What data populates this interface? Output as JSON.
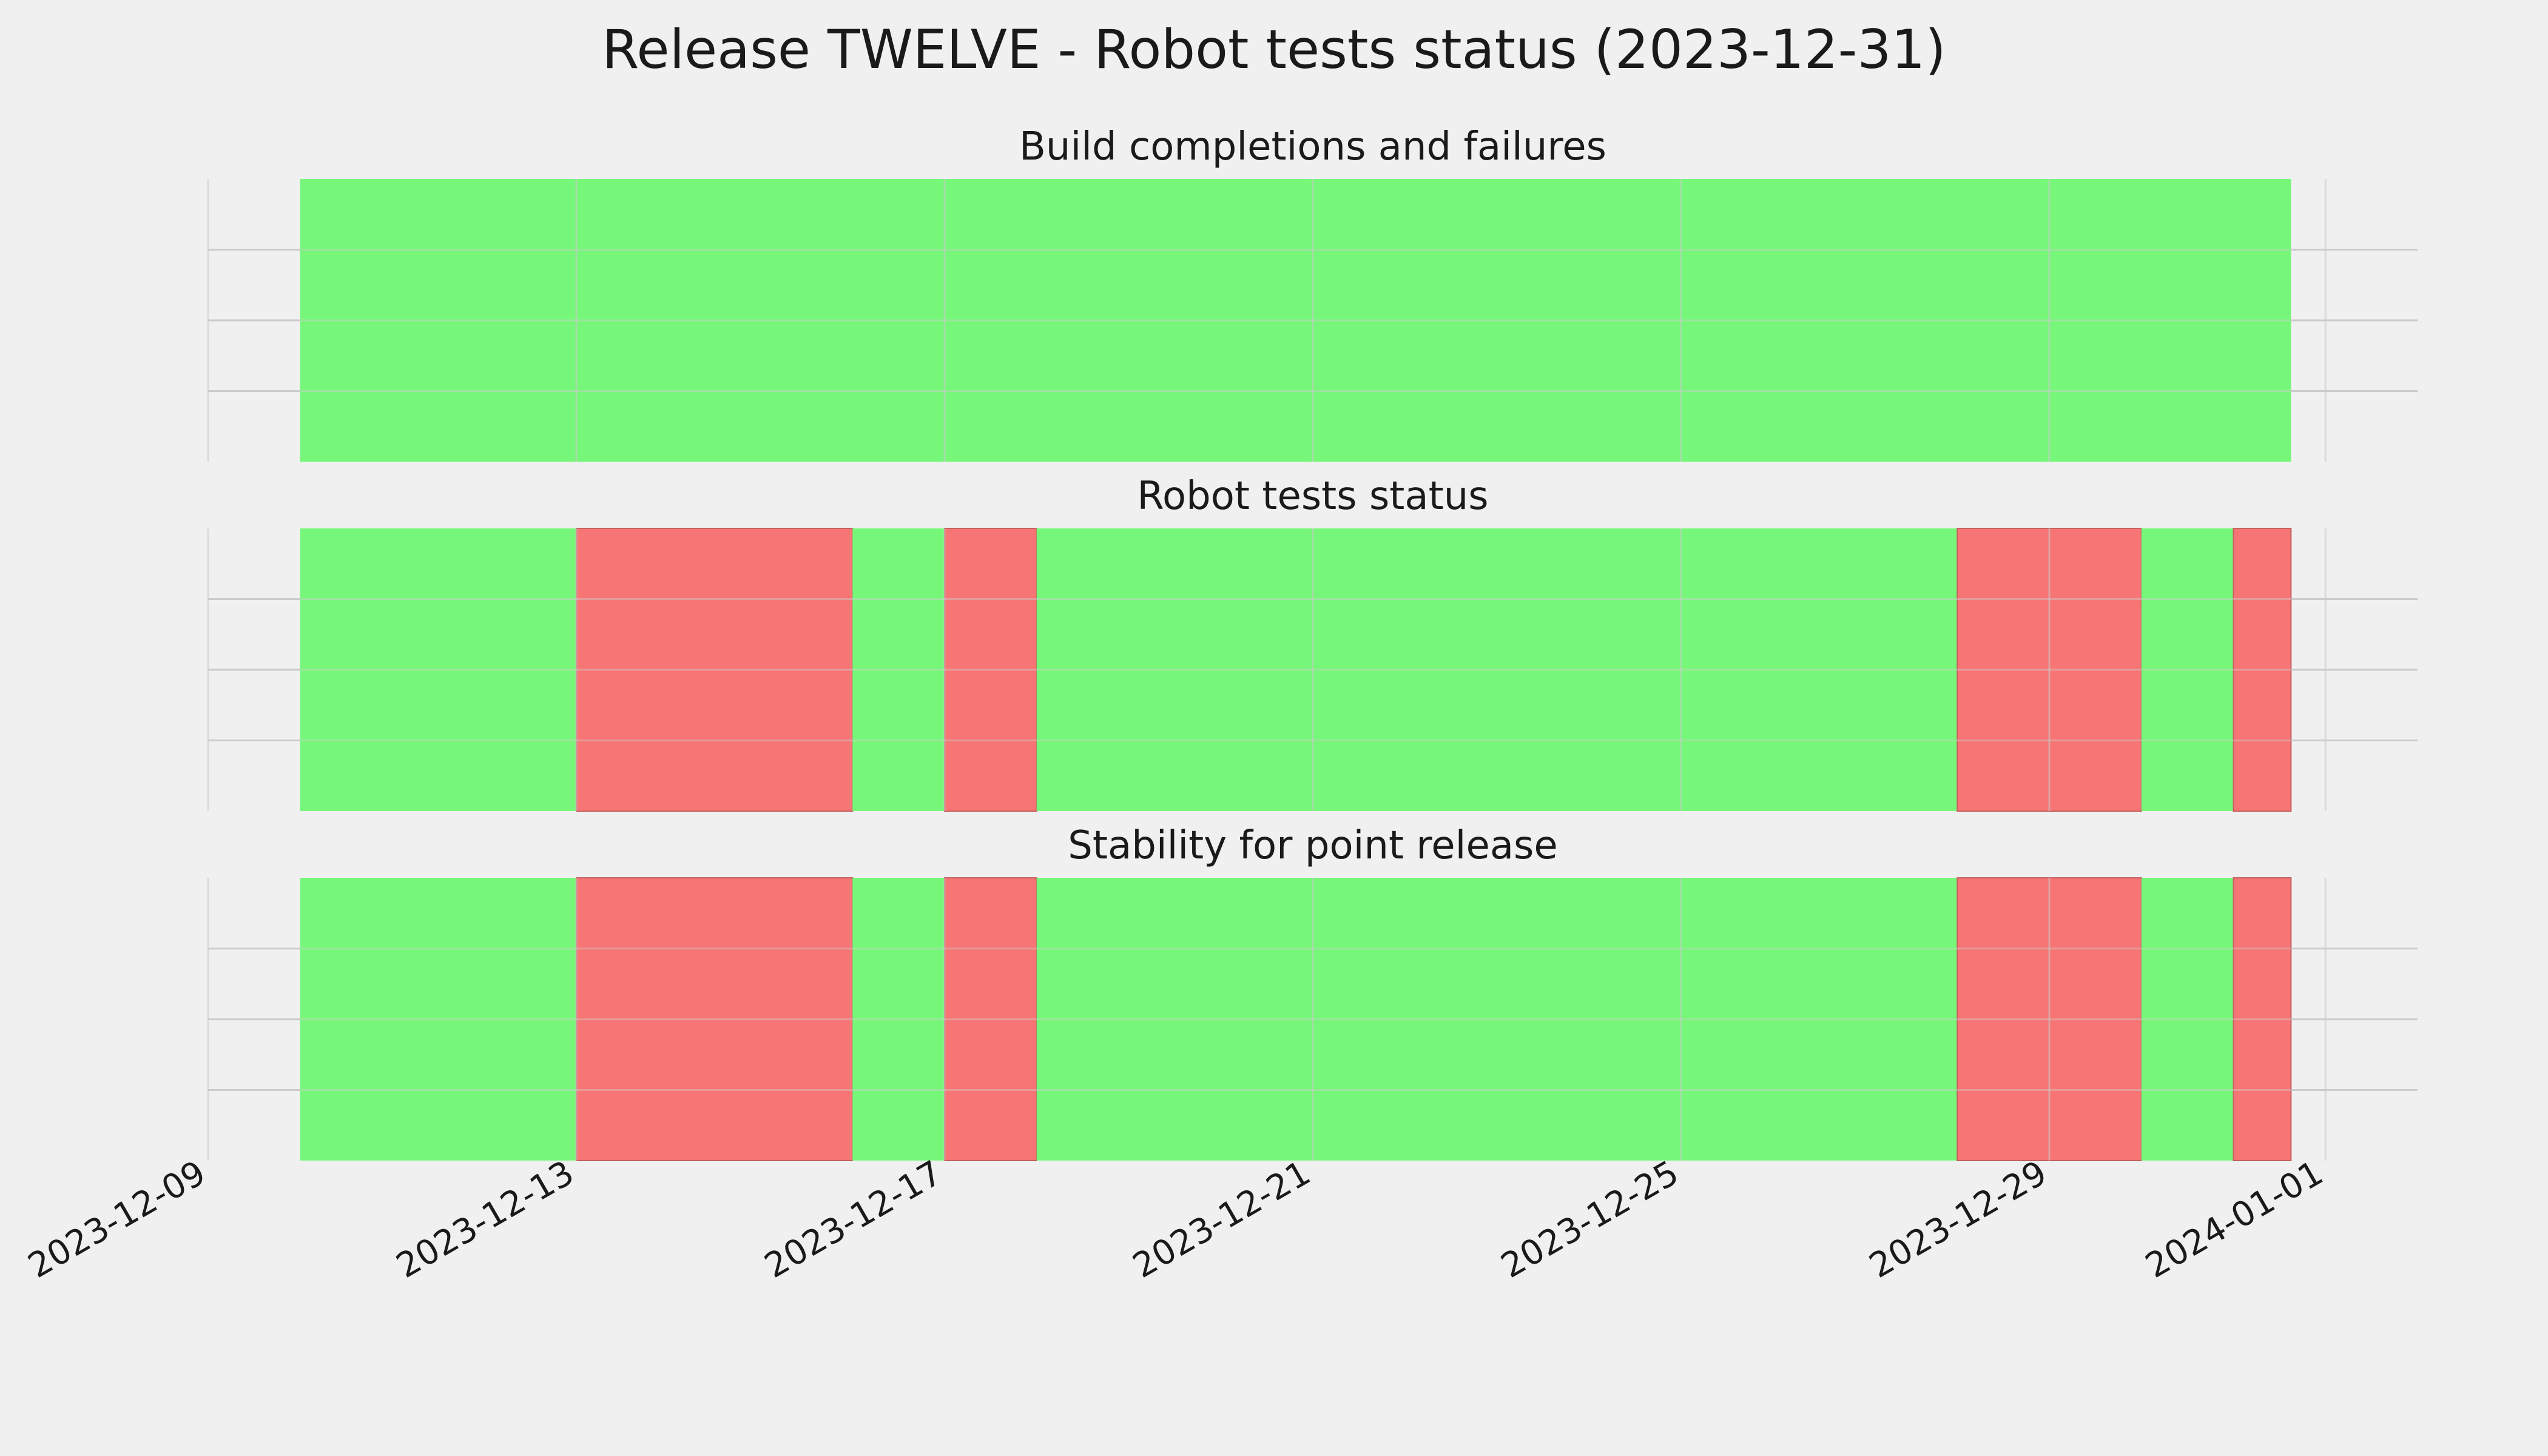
{
  "chart_data": {
    "type": "bar",
    "chart_kind": "status timeline",
    "title": "Release TWELVE - Robot tests status (2023-12-31)",
    "x_axis": {
      "scale": "date",
      "range": [
        "2023-12-09",
        "2024-01-02"
      ],
      "tick_labels": [
        "2023-12-09",
        "2023-12-13",
        "2023-12-17",
        "2023-12-21",
        "2023-12-25",
        "2023-12-29",
        "2024-01-01"
      ],
      "tick_dates": [
        "2023-12-09",
        "2023-12-13",
        "2023-12-17",
        "2023-12-21",
        "2023-12-25",
        "2023-12-29",
        "2024-01-01"
      ]
    },
    "grid": true,
    "colors": {
      "pass": "#77f77a",
      "fail": "#f77574",
      "background": "#f0f0f0",
      "grid": "#cbcbcb"
    },
    "panels": [
      {
        "title": "Build completions and failures",
        "segments": [
          {
            "start": "2023-12-10",
            "end": "2023-12-31 15:00",
            "status": "pass"
          }
        ]
      },
      {
        "title": "Robot tests status",
        "segments": [
          {
            "start": "2023-12-10",
            "end": "2023-12-13",
            "status": "pass"
          },
          {
            "start": "2023-12-13",
            "end": "2023-12-16",
            "status": "fail"
          },
          {
            "start": "2023-12-16",
            "end": "2023-12-17",
            "status": "pass"
          },
          {
            "start": "2023-12-17",
            "end": "2023-12-18",
            "status": "fail"
          },
          {
            "start": "2023-12-18",
            "end": "2023-12-28",
            "status": "pass"
          },
          {
            "start": "2023-12-28",
            "end": "2023-12-30",
            "status": "fail"
          },
          {
            "start": "2023-12-30",
            "end": "2023-12-31",
            "status": "pass"
          },
          {
            "start": "2023-12-31",
            "end": "2023-12-31 15:00",
            "status": "fail"
          }
        ]
      },
      {
        "title": "Stability for point release",
        "segments": [
          {
            "start": "2023-12-10",
            "end": "2023-12-13",
            "status": "pass"
          },
          {
            "start": "2023-12-13",
            "end": "2023-12-16",
            "status": "fail"
          },
          {
            "start": "2023-12-16",
            "end": "2023-12-17",
            "status": "pass"
          },
          {
            "start": "2023-12-17",
            "end": "2023-12-18",
            "status": "fail"
          },
          {
            "start": "2023-12-18",
            "end": "2023-12-28",
            "status": "pass"
          },
          {
            "start": "2023-12-28",
            "end": "2023-12-30",
            "status": "fail"
          },
          {
            "start": "2023-12-30",
            "end": "2023-12-31",
            "status": "pass"
          },
          {
            "start": "2023-12-31",
            "end": "2023-12-31 15:00",
            "status": "fail"
          }
        ]
      }
    ]
  }
}
